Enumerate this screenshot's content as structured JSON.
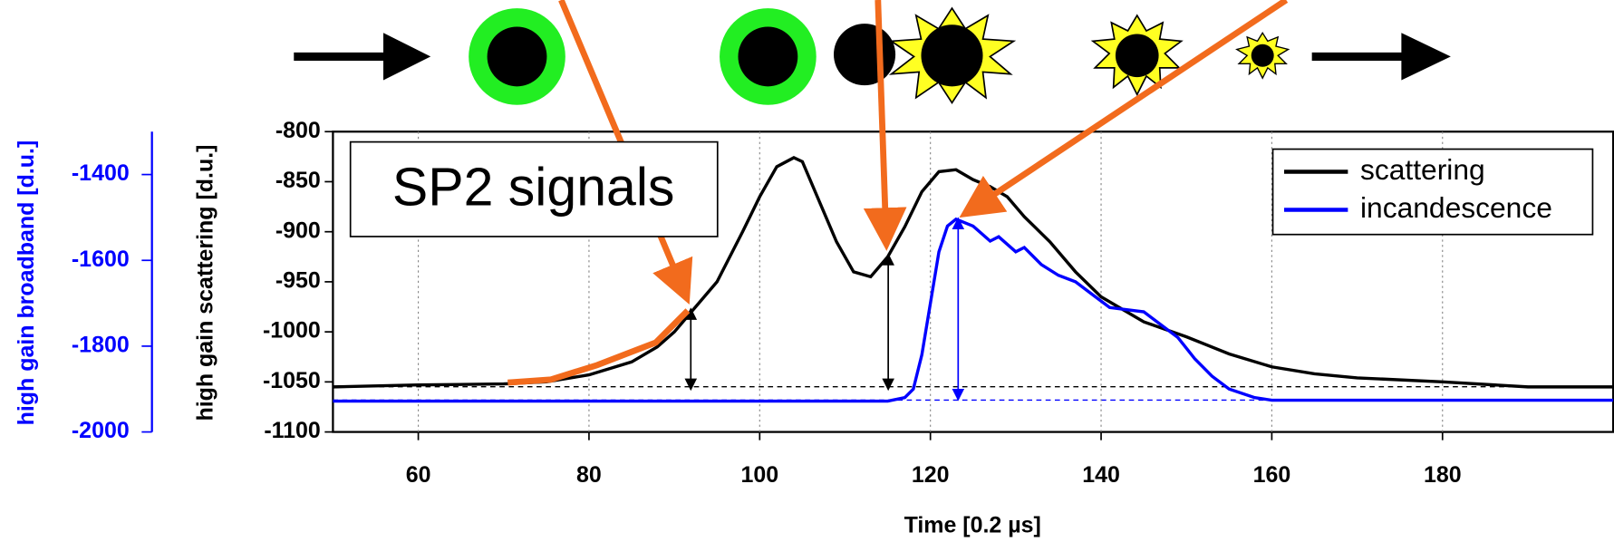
{
  "chart_data": {
    "type": "line",
    "title": "SP2 signals",
    "xlabel": "Time [0.2 µs]",
    "ylabel": "high gain scattering [d.u.]",
    "y2label": "high gain broadband [d.u.]",
    "xlim": [
      50,
      200
    ],
    "xticks": [
      60,
      80,
      100,
      120,
      140,
      160,
      180
    ],
    "ylim": [
      -1100,
      -800
    ],
    "yticks": [
      -1100,
      -1050,
      -1000,
      -950,
      -900,
      -850,
      -800
    ],
    "y2lim": [
      -2000,
      -1300
    ],
    "y2ticks": [
      -2000,
      -1800,
      -1600,
      -1400
    ],
    "grid": true,
    "legend": "upper right",
    "series": [
      {
        "name": "scattering",
        "color": "#000000",
        "x": [
          50,
          60,
          70,
          75,
          80,
          85,
          88,
          90,
          92,
          95,
          98,
          100,
          102,
          104,
          105,
          107,
          109,
          111,
          113,
          115,
          117,
          119,
          121,
          123,
          125,
          127,
          129,
          131,
          134,
          137,
          140,
          145,
          150,
          155,
          160,
          165,
          170,
          180,
          190,
          200
        ],
        "values": [
          -1055,
          -1053,
          -1052,
          -1050,
          -1043,
          -1030,
          -1015,
          -1000,
          -980,
          -950,
          -900,
          -865,
          -835,
          -826,
          -830,
          -870,
          -910,
          -940,
          -945,
          -925,
          -895,
          -860,
          -840,
          -838,
          -848,
          -855,
          -865,
          -885,
          -910,
          -940,
          -965,
          -990,
          -1005,
          -1022,
          -1035,
          -1042,
          -1046,
          -1050,
          -1055,
          -1055
        ]
      },
      {
        "name": "incandescence",
        "color": "#0000ff",
        "axis": "y2",
        "x": [
          50,
          100,
          115,
          117,
          118,
          119,
          120,
          121,
          122,
          123,
          125,
          127,
          128,
          130,
          131,
          133,
          135,
          137,
          139,
          141,
          143,
          145,
          147,
          149,
          151,
          153,
          155,
          158,
          160,
          200
        ],
        "values": [
          -1928,
          -1928,
          -1928,
          -1920,
          -1900,
          -1820,
          -1700,
          -1580,
          -1520,
          -1504,
          -1520,
          -1555,
          -1545,
          -1580,
          -1570,
          -1610,
          -1635,
          -1650,
          -1680,
          -1710,
          -1715,
          -1720,
          -1750,
          -1780,
          -1830,
          -1870,
          -1900,
          -1920,
          -1926,
          -1926
        ]
      }
    ]
  }
}
